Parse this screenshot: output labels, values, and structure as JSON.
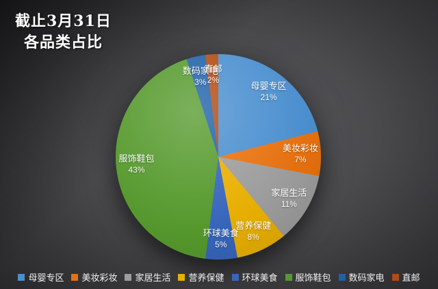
{
  "title": {
    "line1": "截止3月31日",
    "line2": "各品类占比"
  },
  "chart_data": {
    "type": "pie",
    "title": "截止3月31日 各品类占比",
    "legend_position": "bottom",
    "label_format": "name + percent",
    "slices": [
      {
        "label": "母婴专区",
        "value": 21,
        "pct_label": "21%",
        "color": "#4a8fd0"
      },
      {
        "label": "美妆彩妆",
        "value": 7,
        "pct_label": "7%",
        "color": "#e8710e"
      },
      {
        "label": "家居生活",
        "value": 11,
        "pct_label": "11%",
        "color": "#9d9d9d"
      },
      {
        "label": "营养保健",
        "value": 8,
        "pct_label": "8%",
        "color": "#eab000"
      },
      {
        "label": "环球美食",
        "value": 5,
        "pct_label": "5%",
        "color": "#3766bd"
      },
      {
        "label": "服饰鞋包",
        "value": 43,
        "pct_label": "43%",
        "color": "#569a2d"
      },
      {
        "label": "数码家电",
        "value": 3,
        "pct_label": "3%",
        "color": "#1f61a9"
      },
      {
        "label": "直邮",
        "value": 2,
        "pct_label": "2%",
        "color": "#b34a10"
      }
    ]
  }
}
